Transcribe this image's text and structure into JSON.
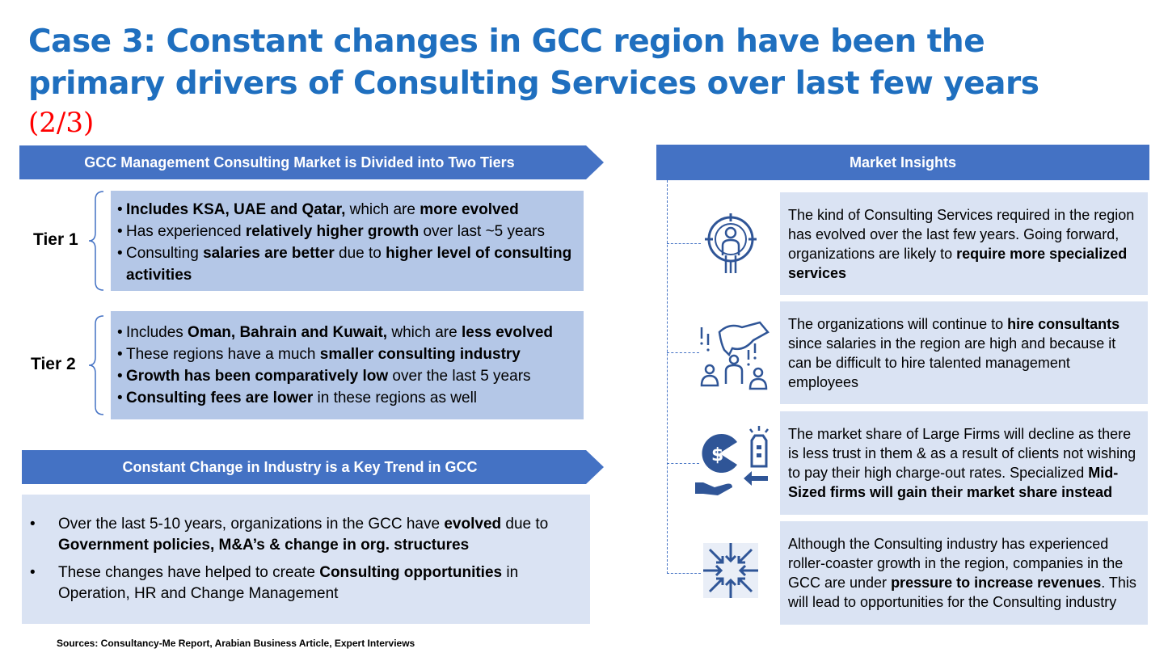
{
  "title_lines": [
    "Case 3: Constant changes in GCC region have been the",
    "primary drivers of Consulting Services over last few years"
  ],
  "subtitle": "(2/3)",
  "tiers_banner": "GCC Management Consulting Market is Divided into Two Tiers",
  "tier1": {
    "label": "Tier 1",
    "items": [
      [
        {
          "t": "Includes KSA, UAE and Qatar,",
          "b": true
        },
        {
          "t": " which are "
        },
        {
          "t": "more evolved",
          "b": true
        }
      ],
      [
        {
          "t": "Has experienced "
        },
        {
          "t": "relatively higher growth",
          "b": true
        },
        {
          "t": " over last ~5 years"
        }
      ],
      [
        {
          "t": "Consulting "
        },
        {
          "t": "salaries are better",
          "b": true
        },
        {
          "t": " due to "
        },
        {
          "t": "higher level of consulting activities",
          "b": true
        }
      ]
    ]
  },
  "tier2": {
    "label": "Tier 2",
    "items": [
      [
        {
          "t": "Includes "
        },
        {
          "t": "Oman, Bahrain and Kuwait,",
          "b": true
        },
        {
          "t": " which are "
        },
        {
          "t": "less evolved",
          "b": true
        }
      ],
      [
        {
          "t": "These regions have a much "
        },
        {
          "t": "smaller consulting industry",
          "b": true
        }
      ],
      [
        {
          "t": "Growth has been comparatively low",
          "b": true
        },
        {
          "t": " over the last 5 years"
        }
      ],
      [
        {
          "t": "Consulting fees are lower",
          "b": true
        },
        {
          "t": " in these regions as well"
        }
      ]
    ]
  },
  "trend_banner": "Constant Change in Industry is a Key Trend in GCC",
  "trend_items": [
    [
      {
        "t": "Over the last 5-10 years, organizations in the GCC have "
      },
      {
        "t": "evolved",
        "b": true
      },
      {
        "t": " due to "
      },
      {
        "t": "Government policies, M&A’s & change in org. structures",
        "b": true
      }
    ],
    [
      {
        "t": "These changes have helped to create "
      },
      {
        "t": "Consulting opportunities",
        "b": true
      },
      {
        "t": " in Operation, HR and Change Management"
      }
    ]
  ],
  "insights_banner": "Market Insights",
  "insights": [
    {
      "icon": "target-person-icon",
      "text": [
        {
          "t": "The kind of Consulting Services required in the region has evolved over the last few years. Going forward, organizations are likely to "
        },
        {
          "t": "require more specialized services",
          "b": true
        }
      ]
    },
    {
      "icon": "hiring-hand-icon",
      "text": [
        {
          "t": "The organizations will continue to "
        },
        {
          "t": "hire consultants",
          "b": true
        },
        {
          "t": " since salaries in the region are high and because it can be difficult to hire talented management employees"
        }
      ]
    },
    {
      "icon": "market-share-icon",
      "text": [
        {
          "t": "The market share of Large Firms will decline as there is less trust in them & as a result of clients not wishing to pay their high charge-out rates. Specialized "
        },
        {
          "t": "Mid-Sized firms will gain their market share instead",
          "b": true
        }
      ]
    },
    {
      "icon": "pressure-arrows-icon",
      "text": [
        {
          "t": "Although the Consulting industry has experienced roller-coaster growth in the region, companies in the GCC are under "
        },
        {
          "t": "pressure to increase revenues",
          "b": true
        },
        {
          "t": ". This will lead to opportunities for the Consulting industry"
        }
      ]
    }
  ],
  "sources": "Sources: Consultancy-Me Report, Arabian Business Article, Expert Interviews",
  "colors": {
    "title": "#1f6fbf",
    "banner": "#4472c4",
    "tier_box": "#b4c7e7",
    "light_box": "#dae3f3",
    "icon": "#2f5597",
    "subtitle": "#ff0000"
  }
}
